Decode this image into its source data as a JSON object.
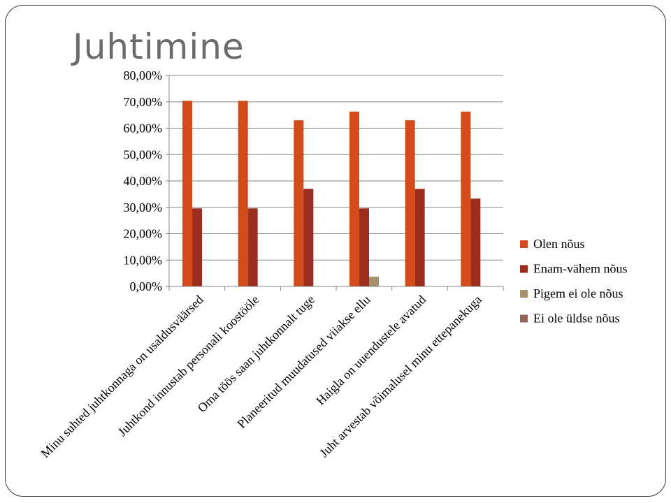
{
  "slide": {
    "title": "Juhtimine"
  },
  "chart_data": {
    "type": "bar",
    "title": "",
    "xlabel": "",
    "ylabel": "",
    "ylim": [
      0,
      0.8
    ],
    "yticks": [
      "0,00%",
      "10,00%",
      "20,00%",
      "30,00%",
      "40,00%",
      "50,00%",
      "60,00%",
      "70,00%",
      "80,00%"
    ],
    "grid": true,
    "legend_position": "right",
    "categories": [
      "Minu suhted juhtkonnaga on usaldusväärsed",
      "Juhtkond innustab personali koostööle",
      "Oma töös saan juhtkonnalt tuge",
      "Planeeritud muudatused viiakse ellu",
      "Haigla on uuendustele avatud",
      "Juht arvestab võimalusel minu ettepanekuga"
    ],
    "series": [
      {
        "name": "Olen nõus",
        "color": "#d14b1b",
        "values": [
          0.704,
          0.704,
          0.63,
          0.663,
          0.63,
          0.663
        ]
      },
      {
        "name": "Enam-vähem nõus",
        "color": "#9b2d1f",
        "values": [
          0.296,
          0.296,
          0.37,
          0.296,
          0.37,
          0.333
        ]
      },
      {
        "name": "Pigem ei ole nõus",
        "color": "#a8916a",
        "values": [
          0,
          0,
          0,
          0.037,
          0,
          0
        ]
      },
      {
        "name": "Ei ole üldse nõus",
        "color": "#94635a",
        "values": [
          0,
          0,
          0,
          0,
          0,
          0
        ]
      }
    ]
  }
}
